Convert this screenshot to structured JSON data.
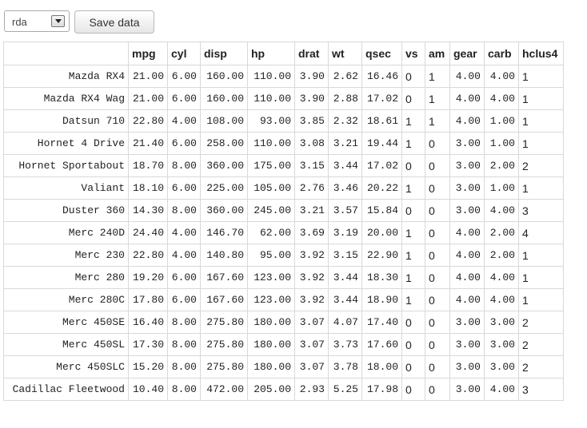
{
  "toolbar": {
    "select_value": "rda",
    "save_label": "Save data"
  },
  "table": {
    "columns": [
      "",
      "mpg",
      "cyl",
      "disp",
      "hp",
      "drat",
      "wt",
      "qsec",
      "vs",
      "am",
      "gear",
      "carb",
      "hclus4"
    ],
    "rows": [
      [
        "Mazda RX4",
        "21.00",
        "6.00",
        "160.00",
        "110.00",
        "3.90",
        "2.62",
        "16.46",
        "0",
        "1",
        "4.00",
        "4.00",
        "1"
      ],
      [
        "Mazda RX4 Wag",
        "21.00",
        "6.00",
        "160.00",
        "110.00",
        "3.90",
        "2.88",
        "17.02",
        "0",
        "1",
        "4.00",
        "4.00",
        "1"
      ],
      [
        "Datsun 710",
        "22.80",
        "4.00",
        "108.00",
        "93.00",
        "3.85",
        "2.32",
        "18.61",
        "1",
        "1",
        "4.00",
        "1.00",
        "1"
      ],
      [
        "Hornet 4 Drive",
        "21.40",
        "6.00",
        "258.00",
        "110.00",
        "3.08",
        "3.21",
        "19.44",
        "1",
        "0",
        "3.00",
        "1.00",
        "1"
      ],
      [
        "Hornet Sportabout",
        "18.70",
        "8.00",
        "360.00",
        "175.00",
        "3.15",
        "3.44",
        "17.02",
        "0",
        "0",
        "3.00",
        "2.00",
        "2"
      ],
      [
        "Valiant",
        "18.10",
        "6.00",
        "225.00",
        "105.00",
        "2.76",
        "3.46",
        "20.22",
        "1",
        "0",
        "3.00",
        "1.00",
        "1"
      ],
      [
        "Duster 360",
        "14.30",
        "8.00",
        "360.00",
        "245.00",
        "3.21",
        "3.57",
        "15.84",
        "0",
        "0",
        "3.00",
        "4.00",
        "3"
      ],
      [
        "Merc 240D",
        "24.40",
        "4.00",
        "146.70",
        "62.00",
        "3.69",
        "3.19",
        "20.00",
        "1",
        "0",
        "4.00",
        "2.00",
        "4"
      ],
      [
        "Merc 230",
        "22.80",
        "4.00",
        "140.80",
        "95.00",
        "3.92",
        "3.15",
        "22.90",
        "1",
        "0",
        "4.00",
        "2.00",
        "1"
      ],
      [
        "Merc 280",
        "19.20",
        "6.00",
        "167.60",
        "123.00",
        "3.92",
        "3.44",
        "18.30",
        "1",
        "0",
        "4.00",
        "4.00",
        "1"
      ],
      [
        "Merc 280C",
        "17.80",
        "6.00",
        "167.60",
        "123.00",
        "3.92",
        "3.44",
        "18.90",
        "1",
        "0",
        "4.00",
        "4.00",
        "1"
      ],
      [
        "Merc 450SE",
        "16.40",
        "8.00",
        "275.80",
        "180.00",
        "3.07",
        "4.07",
        "17.40",
        "0",
        "0",
        "3.00",
        "3.00",
        "2"
      ],
      [
        "Merc 450SL",
        "17.30",
        "8.00",
        "275.80",
        "180.00",
        "3.07",
        "3.73",
        "17.60",
        "0",
        "0",
        "3.00",
        "3.00",
        "2"
      ],
      [
        "Merc 450SLC",
        "15.20",
        "8.00",
        "275.80",
        "180.00",
        "3.07",
        "3.78",
        "18.00",
        "0",
        "0",
        "3.00",
        "3.00",
        "2"
      ],
      [
        "Cadillac Fleetwood",
        "10.40",
        "8.00",
        "472.00",
        "205.00",
        "2.93",
        "5.25",
        "17.98",
        "0",
        "0",
        "3.00",
        "4.00",
        "3"
      ]
    ]
  }
}
